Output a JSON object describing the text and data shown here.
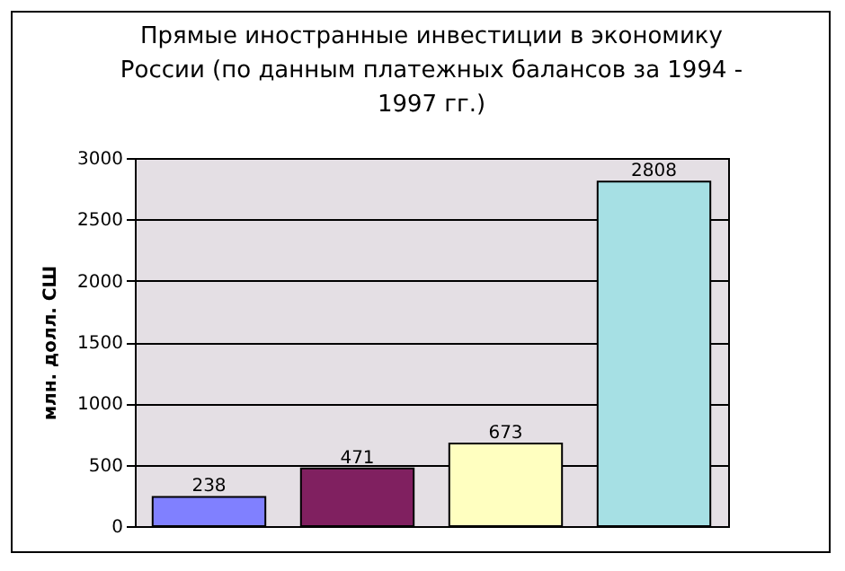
{
  "chart_data": {
    "type": "bar",
    "title": "Прямые иностранные инвестиции в экономику России (по данным платежных балансов за 1994 - 1997 гг.)",
    "ylabel": "млн. долл. СШ",
    "categories": [
      null,
      null,
      null,
      null
    ],
    "values": [
      238,
      471,
      673,
      2808
    ],
    "colors": [
      "#8080ff",
      "#802060",
      "#ffffc0",
      "#a6e0e4"
    ],
    "ylim": [
      0,
      3000
    ],
    "yticks": [
      0,
      500,
      1000,
      1500,
      2000,
      2500,
      3000
    ],
    "grid": "y",
    "data_labels": true
  }
}
